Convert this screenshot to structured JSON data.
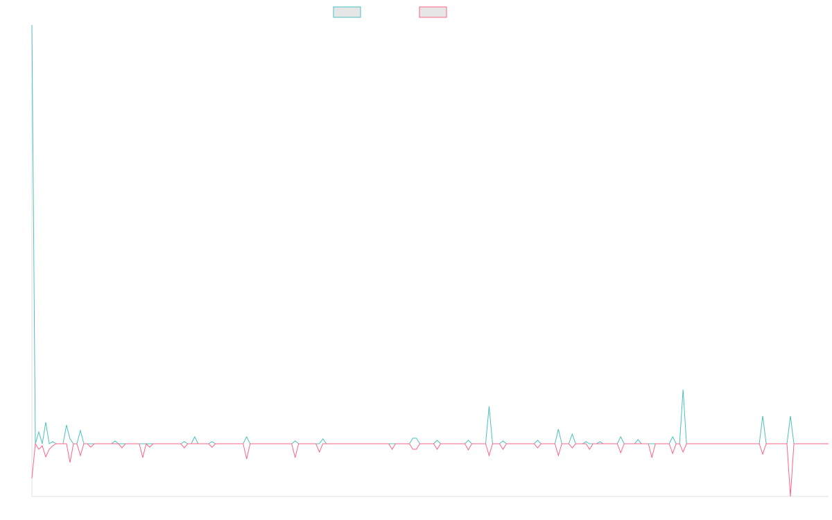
{
  "chart_data": {
    "type": "line",
    "ylim": [
      -76,
      604
    ],
    "series": [
      {
        "color": "#4bc0c0",
        "values": [
          604,
          0,
          17,
          0,
          31,
          0,
          3,
          0,
          0,
          0,
          27,
          7,
          0,
          0,
          19,
          0,
          0,
          0,
          0,
          0,
          0,
          0,
          0,
          0,
          4,
          0,
          0,
          0,
          0,
          0,
          0,
          0,
          0,
          0,
          0,
          0,
          0,
          0,
          0,
          0,
          0,
          0,
          0,
          0,
          3,
          0,
          0,
          10,
          0,
          0,
          0,
          0,
          3,
          0,
          0,
          0,
          0,
          0,
          0,
          0,
          0,
          0,
          10,
          0,
          0,
          0,
          0,
          0,
          0,
          0,
          0,
          0,
          0,
          0,
          0,
          0,
          4,
          0,
          0,
          0,
          0,
          0,
          0,
          0,
          7,
          0,
          0,
          0,
          0,
          0,
          0,
          0,
          0,
          0,
          0,
          0,
          0,
          0,
          0,
          0,
          0,
          0,
          0,
          0,
          0,
          0,
          0,
          0,
          0,
          0,
          8,
          8,
          0,
          0,
          0,
          0,
          0,
          5,
          0,
          0,
          0,
          0,
          0,
          0,
          0,
          0,
          5,
          0,
          0,
          0,
          0,
          0,
          54,
          0,
          0,
          0,
          4,
          0,
          0,
          0,
          0,
          0,
          0,
          0,
          0,
          0,
          5,
          0,
          0,
          0,
          0,
          0,
          21,
          0,
          0,
          0,
          14,
          0,
          0,
          0,
          3,
          0,
          0,
          0,
          3,
          0,
          0,
          0,
          0,
          0,
          10,
          0,
          0,
          0,
          0,
          6,
          0,
          0,
          0,
          0,
          0,
          0,
          0,
          0,
          0,
          10,
          0,
          0,
          78,
          0,
          0,
          0,
          0,
          0,
          0,
          0,
          0,
          0,
          0,
          0,
          0,
          0,
          0,
          0,
          0,
          0,
          0,
          0,
          0,
          0,
          0,
          40,
          0,
          0,
          0,
          0,
          0,
          0,
          0,
          40,
          0,
          0,
          0,
          0,
          0,
          0,
          0,
          0,
          0,
          0,
          0
        ]
      },
      {
        "color": "#ff6384",
        "values": [
          -50,
          0,
          -8,
          -3,
          -19,
          -8,
          -3,
          0,
          0,
          0,
          0,
          -27,
          0,
          0,
          -17,
          0,
          0,
          -5,
          0,
          0,
          0,
          0,
          0,
          0,
          0,
          0,
          -6,
          0,
          0,
          0,
          0,
          0,
          -20,
          0,
          -5,
          0,
          0,
          0,
          0,
          0,
          0,
          0,
          0,
          0,
          -6,
          0,
          0,
          0,
          0,
          0,
          0,
          0,
          -5,
          0,
          0,
          0,
          0,
          0,
          0,
          0,
          0,
          0,
          -22,
          0,
          0,
          0,
          0,
          0,
          0,
          0,
          0,
          0,
          0,
          0,
          0,
          0,
          -20,
          0,
          0,
          0,
          0,
          0,
          0,
          -12,
          0,
          0,
          0,
          0,
          0,
          0,
          0,
          0,
          0,
          0,
          0,
          0,
          0,
          0,
          0,
          0,
          0,
          0,
          0,
          0,
          -8,
          0,
          0,
          0,
          0,
          0,
          -8,
          -8,
          0,
          0,
          0,
          0,
          0,
          -8,
          0,
          0,
          0,
          0,
          0,
          0,
          0,
          0,
          -9,
          0,
          0,
          0,
          0,
          0,
          -17,
          0,
          0,
          0,
          -8,
          0,
          0,
          0,
          0,
          0,
          0,
          0,
          0,
          0,
          -6,
          0,
          0,
          0,
          0,
          0,
          -17,
          0,
          0,
          0,
          -6,
          0,
          0,
          0,
          0,
          -8,
          0,
          0,
          0,
          0,
          0,
          0,
          0,
          0,
          -13,
          0,
          0,
          0,
          0,
          0,
          0,
          0,
          0,
          -20,
          0,
          0,
          0,
          0,
          0,
          -14,
          0,
          0,
          -12,
          0,
          0,
          0,
          0,
          0,
          0,
          0,
          0,
          0,
          0,
          0,
          0,
          0,
          0,
          0,
          0,
          0,
          0,
          0,
          0,
          0,
          0,
          -15,
          0,
          0,
          0,
          0,
          0,
          0,
          0,
          -76,
          0,
          0,
          0,
          0,
          0,
          0,
          0,
          0,
          0,
          0,
          0
        ]
      }
    ]
  }
}
